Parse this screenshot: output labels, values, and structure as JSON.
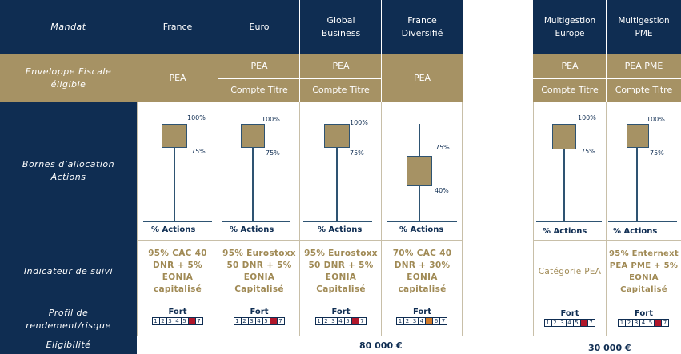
{
  "labels": {
    "mandat": "Mandat",
    "enveloppe": "Enveloppe Fiscale éligible",
    "bornes": "Bornes d’allocation Actions",
    "indicateur": "Indicateur de suivi",
    "profil": "Profil de rendement/risque",
    "eligibilite": "Eligibilité"
  },
  "funds": [
    {
      "name": "France",
      "env_top": "PEA",
      "env_bottom": "",
      "high": "100%",
      "low": "75%",
      "axis": "% Actions",
      "indicator": [
        "95% CAC 40",
        "DNR + 5%",
        "EONIA",
        "capitalisé"
      ],
      "fort": "Fort",
      "risk": 6
    },
    {
      "name": "Euro",
      "env_top": "PEA",
      "env_bottom": "Compte Titre",
      "high": "100%",
      "low": "75%",
      "axis": "% Actions",
      "indicator": [
        "95% Eurostoxx",
        "50 DNR + 5%",
        "EONIA",
        "Capitalisé"
      ],
      "fort": "Fort",
      "risk": 6
    },
    {
      "name": "Global Business",
      "env_top": "PEA",
      "env_bottom": "Compte Titre",
      "high": "100%",
      "low": "75%",
      "axis": "% Actions",
      "indicator": [
        "95% Eurostoxx",
        "50 DNR + 5%",
        "EONIA",
        "Capitalisé"
      ],
      "fort": "Fort",
      "risk": 6
    },
    {
      "name": "France Diversifié",
      "env_top": "PEA",
      "env_bottom": "",
      "high": "75%",
      "low": "40%",
      "axis": "% Actions",
      "indicator": [
        "70% CAC 40",
        "DNR + 30%",
        "EONIA",
        "capitalisé"
      ],
      "fort": "Fort",
      "risk": 5
    },
    {
      "name": "Multigestion Europe",
      "env_top": "PEA",
      "env_bottom": "Compte Titre",
      "high": "100%",
      "low": "75%",
      "axis": "% Actions",
      "indicator": [
        "Catégorie PEA"
      ],
      "fort": "Fort",
      "risk": 6
    },
    {
      "name": "Multigestion PME",
      "env_top": "PEA PME",
      "env_bottom": "Compte Titre",
      "high": "100%",
      "low": "75%",
      "axis": "% Actions",
      "indicator": [
        "95% Enternext",
        "PEA PME + 5%",
        "EONIA",
        "Capitalisé"
      ],
      "fort": "Fort",
      "risk": 6
    }
  ],
  "scale": [
    "1",
    "2",
    "3",
    "4",
    "5",
    "6",
    "7"
  ],
  "eligibility": {
    "group1": "80 000 €",
    "group2": "30 000 €"
  },
  "colors": {
    "navy": "#0f2d52",
    "gold": "#a69264",
    "risk_high": "#b0172b",
    "risk_mid": "#d17a2a"
  }
}
